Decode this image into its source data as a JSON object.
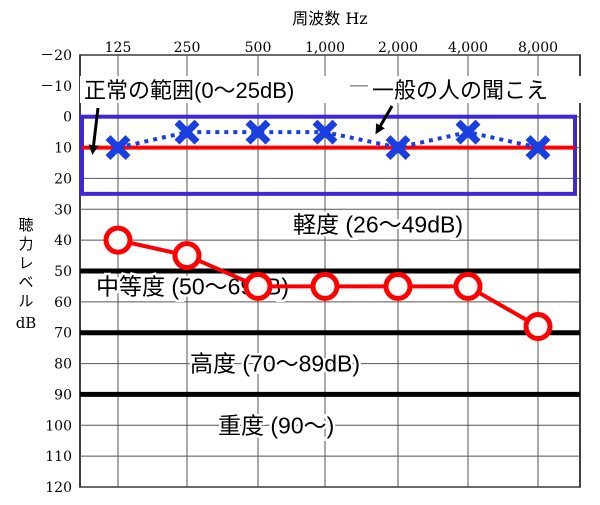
{
  "chart_data": {
    "type": "line",
    "title": "周波数 Hz",
    "ylabel_lines": [
      "聴",
      "力",
      "レ",
      "ベ",
      "ル",
      "dB"
    ],
    "x_categories": [
      "125",
      "250",
      "500",
      "1,000",
      "2,000",
      "4,000",
      "8,000"
    ],
    "y_ticks": [
      "－20",
      "－10",
      "0",
      "10",
      "20",
      "30",
      "40",
      "50",
      "60",
      "70",
      "80",
      "90",
      "100",
      "110",
      "120"
    ],
    "y_tick_values": [
      -20,
      -10,
      0,
      10,
      20,
      30,
      40,
      50,
      60,
      70,
      80,
      90,
      100,
      110,
      120
    ],
    "ylim": [
      -20,
      120
    ],
    "y_inverted": true,
    "grid": true,
    "series": [
      {
        "name": "一般の人の聞こえ",
        "marker": "x",
        "line_style": "dotted",
        "color": "#1a3fe0",
        "values": [
          10,
          5,
          5,
          5,
          10,
          5,
          10
        ]
      },
      {
        "marker": "o",
        "line_style": "solid",
        "color": "#ff0000",
        "values": [
          40,
          45,
          55,
          55,
          55,
          55,
          68
        ]
      }
    ],
    "reference_line": {
      "value": 10,
      "color": "#ff0000"
    },
    "normal_range": {
      "label": "正常の範囲(0〜25dB)",
      "from": 0,
      "to": 25,
      "color": "#3c28d8"
    },
    "band_separators": [
      50,
      70,
      90
    ],
    "bands": [
      {
        "label": "軽度 (26〜49dB)",
        "center": 35
      },
      {
        "label": "中等度 (50〜69dB)",
        "center": 55
      },
      {
        "label": "高度 (70〜89dB)",
        "center": 80
      },
      {
        "label": "重度 (90〜)",
        "center": 100
      }
    ],
    "annotations": {
      "normal_label": "正常の範囲(0〜25dB)",
      "typical_label": "一般の人の聞こえ"
    }
  }
}
